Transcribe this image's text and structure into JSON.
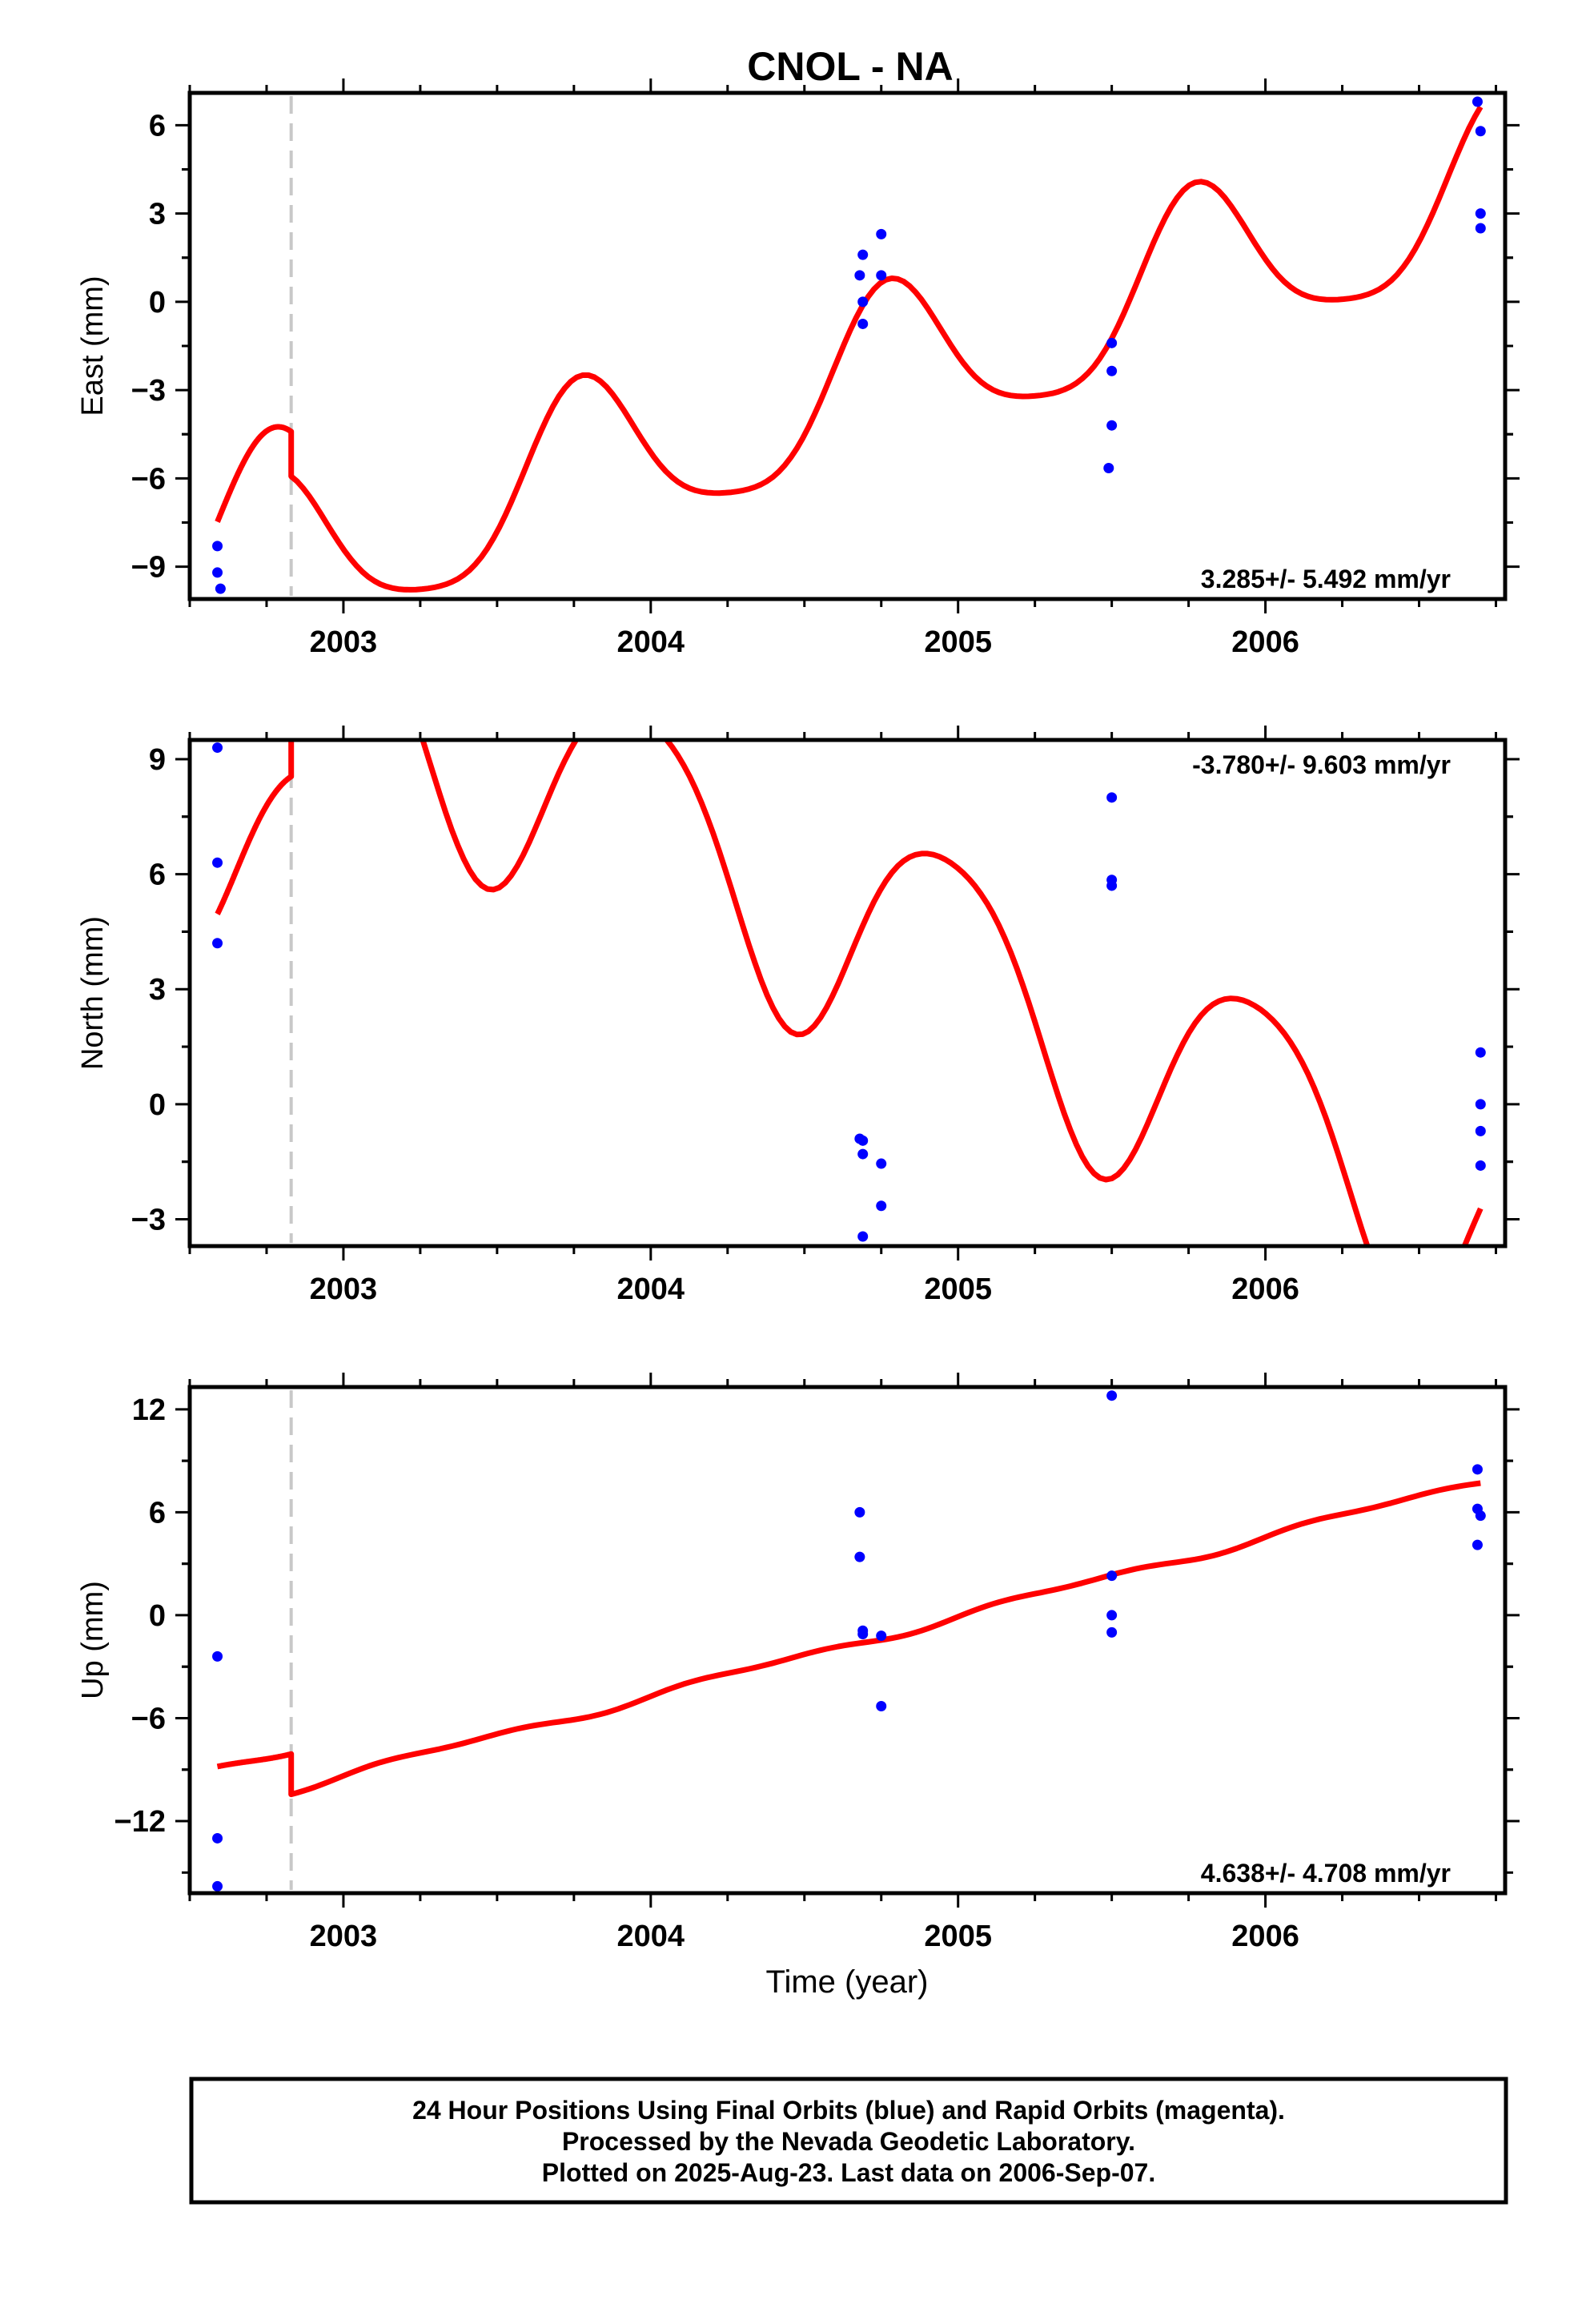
{
  "title": "CNOL - NA",
  "x_axis_label": "Time (year)",
  "footer_lines": [
    "24 Hour Positions Using Final Orbits (blue) and Rapid Orbits (magenta).",
    "Processed by the Nevada Geodetic Laboratory.",
    "Plotted on 2025-Aug-23. Last data on 2006-Sep-07."
  ],
  "colors": {
    "points": "#0000ff",
    "model": "#ff0000",
    "equipment_change": "#c8c8c8",
    "axes": "#000000"
  },
  "chart_data": [
    {
      "type": "scatter",
      "panel": "east",
      "ylabel": "East (mm)",
      "rate": "3.285+/- 5.492 mm/yr",
      "rate_position": "bottom-right",
      "xlim": [
        2002.5,
        2006.78
      ],
      "ylim": [
        -10.1,
        7.1
      ],
      "x_ticks": [
        2003,
        2004,
        2005,
        2006
      ],
      "y_ticks": [
        -9,
        -6,
        -3,
        0,
        3,
        6
      ],
      "equipment_change_x": 2002.83,
      "points": [
        [
          2002.59,
          -8.3
        ],
        [
          2002.59,
          -9.2
        ],
        [
          2002.6,
          -9.75
        ],
        [
          2004.68,
          0.9
        ],
        [
          2004.69,
          1.6
        ],
        [
          2004.69,
          0.0
        ],
        [
          2004.69,
          -0.75
        ],
        [
          2004.75,
          2.3
        ],
        [
          2004.75,
          0.9
        ],
        [
          2005.5,
          -1.4
        ],
        [
          2005.5,
          -2.35
        ],
        [
          2005.5,
          -4.2
        ],
        [
          2005.49,
          -5.65
        ],
        [
          2006.69,
          6.8
        ],
        [
          2006.7,
          5.8
        ],
        [
          2006.7,
          3.0
        ],
        [
          2006.7,
          2.5
        ]
      ],
      "model": {
        "segments": [
          {
            "x_start": 2002.59,
            "x_end": 2002.83,
            "offset": 1.52
          },
          {
            "x_start": 2002.83,
            "x_end": 2006.7,
            "offset": 0.0
          }
        ],
        "trend_ref_x": 2004.0,
        "trend_ref_y": -5.1,
        "slope": 3.285,
        "terms": [
          {
            "period": 1.0,
            "amplitude": 2.8,
            "phase_x": 2003.78
          },
          {
            "period": 0.5,
            "amplitude": 0.55,
            "phase_x": 2003.76
          }
        ]
      }
    },
    {
      "type": "scatter",
      "panel": "north",
      "ylabel": "North (mm)",
      "rate": "-3.780+/- 9.603 mm/yr",
      "rate_position": "top-right",
      "xlim": [
        2002.5,
        2006.78
      ],
      "ylim": [
        -3.7,
        9.5
      ],
      "x_ticks": [
        2003,
        2004,
        2005,
        2006
      ],
      "y_ticks": [
        -3,
        0,
        3,
        6,
        9
      ],
      "equipment_change_x": 2002.83,
      "points": [
        [
          2002.59,
          9.3
        ],
        [
          2002.59,
          6.3
        ],
        [
          2002.59,
          4.2
        ],
        [
          2004.68,
          -0.9
        ],
        [
          2004.69,
          -0.95
        ],
        [
          2004.69,
          -1.3
        ],
        [
          2004.69,
          -3.45
        ],
        [
          2004.75,
          -1.55
        ],
        [
          2004.75,
          -2.65
        ],
        [
          2005.5,
          8.0
        ],
        [
          2005.5,
          5.85
        ],
        [
          2005.5,
          5.7
        ],
        [
          2006.7,
          1.35
        ],
        [
          2006.7,
          0.0
        ],
        [
          2006.7,
          -0.7
        ],
        [
          2006.7,
          -1.6
        ]
      ],
      "model": {
        "segments": [
          {
            "x_start": 2002.59,
            "x_end": 2002.83,
            "offset": -5.4
          },
          {
            "x_start": 2002.83,
            "x_end": 2006.7,
            "offset": 0.0
          }
        ],
        "trend_ref_x": 2004.0,
        "trend_ref_y": 7.25,
        "slope": -3.78,
        "terms": [
          {
            "period": 1.0,
            "amplitude": 3.2,
            "phase_x": 2003.96
          },
          {
            "period": 0.5,
            "amplitude": 0.45,
            "phase_x": 2003.72
          }
        ]
      }
    },
    {
      "type": "scatter",
      "panel": "up",
      "ylabel": "Up (mm)",
      "rate": "4.638+/- 4.708 mm/yr",
      "rate_position": "bottom-right",
      "xlim": [
        2002.5,
        2006.78
      ],
      "ylim": [
        -16.2,
        13.3
      ],
      "x_ticks": [
        2003,
        2004,
        2005,
        2006
      ],
      "y_ticks": [
        -12,
        -6,
        0,
        6,
        12
      ],
      "equipment_change_x": 2002.83,
      "points": [
        [
          2002.59,
          -2.4
        ],
        [
          2002.59,
          -13.0
        ],
        [
          2002.59,
          -15.8
        ],
        [
          2004.68,
          6.0
        ],
        [
          2004.68,
          3.4
        ],
        [
          2004.69,
          -0.9
        ],
        [
          2004.69,
          -1.1
        ],
        [
          2004.75,
          -1.2
        ],
        [
          2004.75,
          -5.3
        ],
        [
          2005.5,
          12.8
        ],
        [
          2005.5,
          2.3
        ],
        [
          2005.5,
          0.0
        ],
        [
          2005.5,
          -1.0
        ],
        [
          2006.69,
          8.5
        ],
        [
          2006.69,
          6.2
        ],
        [
          2006.7,
          5.8
        ],
        [
          2006.69,
          4.1
        ]
      ],
      "model": {
        "segments": [
          {
            "x_start": 2002.59,
            "x_end": 2002.83,
            "offset": 2.35
          },
          {
            "x_start": 2002.83,
            "x_end": 2006.7,
            "offset": 0.0
          }
        ],
        "trend_ref_x": 2004.0,
        "trend_ref_y": -4.7,
        "slope": 4.638,
        "terms": [
          {
            "period": 1.0,
            "amplitude": 0.2,
            "phase_x": 2003.3
          },
          {
            "period": 0.5,
            "amplitude": 0.12,
            "phase_x": 2003.1
          }
        ]
      }
    }
  ]
}
